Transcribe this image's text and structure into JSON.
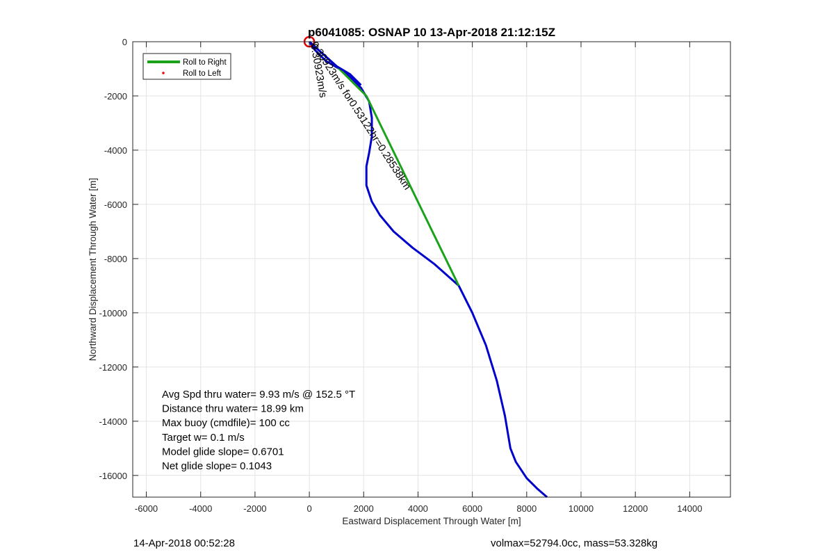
{
  "chart_data": {
    "type": "line",
    "title": "p6041085: OSNAP 10 13-Apr-2018 21:12:15Z",
    "xlabel": "Eastward Displacement Through Water [m]",
    "ylabel": "Northward Displacement Through Water [m]",
    "xlim": [
      -6500,
      15500
    ],
    "ylim": [
      -16800,
      0
    ],
    "xticks": [
      -6000,
      -4000,
      -2000,
      0,
      2000,
      4000,
      6000,
      8000,
      10000,
      12000,
      14000
    ],
    "yticks": [
      0,
      -2000,
      -4000,
      -6000,
      -8000,
      -10000,
      -12000,
      -14000,
      -16000
    ],
    "grid": true,
    "legend_position": "top-left",
    "legend": [
      {
        "label": "Roll to Right",
        "color": "#1aa31a",
        "style": "line"
      },
      {
        "label": "Roll to Left",
        "color": "#ff0000",
        "style": "dot"
      }
    ],
    "series": [
      {
        "name": "",
        "color": "#0000cc",
        "points": [
          [
            0,
            0
          ],
          [
            200,
            -300
          ],
          [
            600,
            -700
          ],
          [
            1100,
            -1000
          ],
          [
            1500,
            -1300
          ],
          [
            1900,
            -1700
          ],
          [
            2200,
            -2200
          ],
          [
            2300,
            -2800
          ],
          [
            2300,
            -3500
          ],
          [
            2200,
            -4100
          ],
          [
            2100,
            -4600
          ],
          [
            2100,
            -5300
          ],
          [
            2300,
            -5900
          ],
          [
            2600,
            -6400
          ],
          [
            3100,
            -7000
          ],
          [
            3800,
            -7600
          ],
          [
            4600,
            -8200
          ],
          [
            5500,
            -9000
          ],
          [
            6000,
            -10000
          ],
          [
            6500,
            -11200
          ],
          [
            6900,
            -12500
          ],
          [
            7200,
            -13800
          ],
          [
            7400,
            -15000
          ],
          [
            7600,
            -15500
          ],
          [
            8000,
            -16100
          ],
          [
            8400,
            -16500
          ],
          [
            8750,
            -16800
          ]
        ]
      },
      {
        "name": "Roll to Right",
        "color": "#1aa31a",
        "points": [
          [
            0,
            0
          ],
          [
            1000,
            -900
          ],
          [
            2100,
            -2000
          ],
          [
            5500,
            -9000
          ]
        ]
      },
      {
        "name": "",
        "color": "#0000cc",
        "points": [
          [
            0,
            0
          ],
          [
            1000,
            -900
          ],
          [
            1500,
            -1200
          ],
          [
            1900,
            -1600
          ]
        ]
      }
    ],
    "markers": [
      {
        "type": "circle",
        "x": 0,
        "y": 0,
        "color": "#dd0000"
      }
    ],
    "annotations": [
      {
        "text": "0.30923m/s for0.53122hr=0.28538km",
        "x": 0,
        "y": 0,
        "rotation_deg": 57
      },
      {
        "text": "0.30923m/s",
        "x": 0,
        "y": 0,
        "rotation_deg": 80
      }
    ],
    "info_lines": [
      "Avg Spd thru water=  9.93 m/s @ 152.5 °T",
      "Distance thru water= 18.99 km",
      "Max buoy (cmdfile)= 100 cc",
      "Target w= 0.1 m/s",
      "Model glide slope= 0.6701",
      "Net glide slope= 0.1043"
    ]
  },
  "footer": {
    "left": "14-Apr-2018 00:52:28",
    "right": "volmax=52794.0cc, mass=53.328kg"
  }
}
